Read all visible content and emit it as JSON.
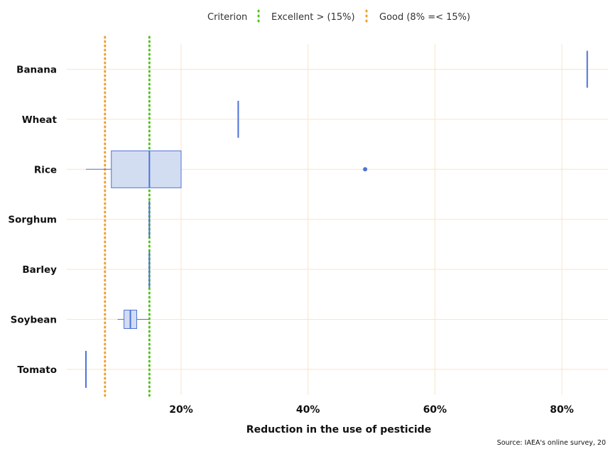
{
  "chart_data": {
    "type": "boxplot",
    "orientation": "horizontal",
    "title": "",
    "xlabel": "Reduction in the use of pesticide",
    "ylabel": "",
    "xlim": [
      -0.04,
      0.87
    ],
    "x_ticks": [
      0.2,
      0.4,
      0.6,
      0.8
    ],
    "x_tick_labels": [
      "20%",
      "40%",
      "60%",
      "80%"
    ],
    "categories": [
      "Banana",
      "Wheat",
      "Rice",
      "Sorghum",
      "Barley",
      "Soybean",
      "Tomato"
    ],
    "boxes": [
      {
        "category": "Banana",
        "min": 0.84,
        "q1": 0.84,
        "median": 0.84,
        "q3": 0.84,
        "max": 0.84,
        "outliers": []
      },
      {
        "category": "Wheat",
        "min": 0.29,
        "q1": 0.29,
        "median": 0.29,
        "q3": 0.29,
        "max": 0.29,
        "outliers": []
      },
      {
        "category": "Rice",
        "min": 0.05,
        "q1": 0.09,
        "median": 0.15,
        "q3": 0.2,
        "max": 0.2,
        "outliers": [
          0.49
        ]
      },
      {
        "category": "Sorghum",
        "min": 0.15,
        "q1": 0.15,
        "median": 0.15,
        "q3": 0.15,
        "max": 0.15,
        "outliers": []
      },
      {
        "category": "Barley",
        "min": 0.15,
        "q1": 0.15,
        "median": 0.15,
        "q3": 0.15,
        "max": 0.15,
        "outliers": []
      },
      {
        "category": "Soybean",
        "min": 0.1,
        "q1": 0.11,
        "median": 0.12,
        "q3": 0.13,
        "max": 0.15,
        "outliers": []
      }
    ],
    "single_values": [
      {
        "category": "Tomato",
        "value": 0.05
      }
    ],
    "reference_lines": [
      {
        "name": "Excellent > (15%)",
        "value": 0.15,
        "color": "#52c41a",
        "style": "dotted"
      },
      {
        "name": "Good (8% =< 15%)",
        "value": 0.08,
        "color": "#f0a030",
        "style": "dotted"
      }
    ],
    "legend": {
      "title": "Criterion",
      "position": "top"
    },
    "grid": true,
    "colors": {
      "box_fill": "#d3ddf2",
      "box_stroke": "#4e72d8",
      "grid": "#fbe3c7"
    },
    "source": "Source: IAEA's online survey, 20"
  }
}
